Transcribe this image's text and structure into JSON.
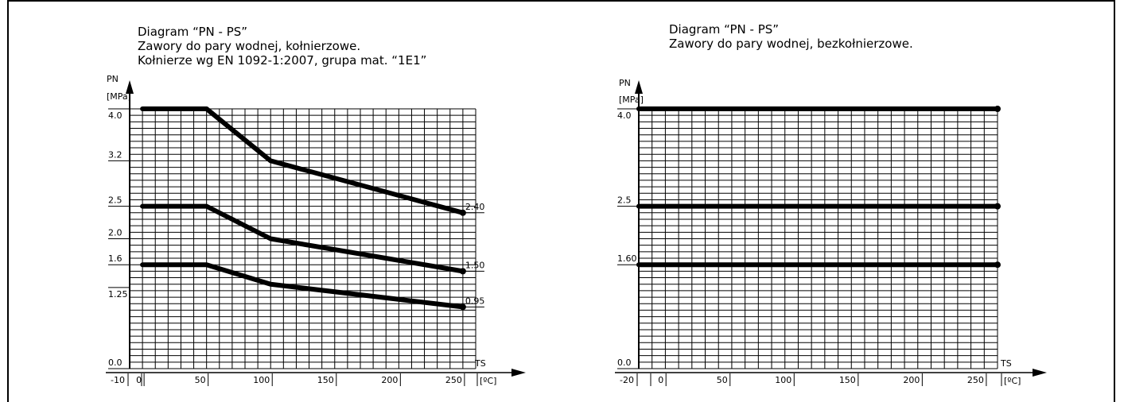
{
  "chart_data": [
    {
      "type": "line",
      "title_lines": [
        "Diagram “PN - PS”",
        "Zawory do pary wodnej, kołnierzowe.",
        "Kołnierze wg EN 1092-1:2007, grupa mat. “1E1”"
      ],
      "ylabel_lines": [
        "PN",
        "[MPa]"
      ],
      "xlabel": "TS",
      "xunit": "[ºC]",
      "xlim": [
        -10,
        260
      ],
      "ylim": [
        0,
        4
      ],
      "grid": true,
      "x_ticks": [
        {
          "v": -10,
          "label": "-10"
        },
        {
          "v": 0,
          "label": "0"
        },
        {
          "v": 50,
          "label": "50"
        },
        {
          "v": 100,
          "label": "100"
        },
        {
          "v": 150,
          "label": "150"
        },
        {
          "v": 200,
          "label": "200"
        },
        {
          "v": 250,
          "label": "250"
        }
      ],
      "y_ticks": [
        {
          "v": 0,
          "label": "0.0"
        },
        {
          "v": 1.25,
          "label": "1.25"
        },
        {
          "v": 1.6,
          "label": "1.6"
        },
        {
          "v": 2.0,
          "label": "2.0"
        },
        {
          "v": 2.5,
          "label": "2.5"
        },
        {
          "v": 3.2,
          "label": "3.2"
        },
        {
          "v": 4.0,
          "label": "4.0"
        }
      ],
      "series": [
        {
          "end_label": "2.40",
          "x": [
            0,
            50,
            100,
            250
          ],
          "y": [
            4.0,
            4.0,
            3.2,
            2.4
          ]
        },
        {
          "end_label": "1.50",
          "x": [
            0,
            50,
            100,
            250
          ],
          "y": [
            2.5,
            2.5,
            2.0,
            1.5
          ]
        },
        {
          "end_label": "0.95",
          "x": [
            0,
            50,
            100,
            250
          ],
          "y": [
            1.6,
            1.6,
            1.3,
            0.95
          ]
        }
      ]
    },
    {
      "type": "line",
      "title_lines": [
        "Diagram “PN - PS”",
        "Zawory do pary wodnej, bezkołnierzowe."
      ],
      "ylabel_lines": [
        "PN",
        "[MPa]"
      ],
      "xlabel": "TS",
      "xunit": "[ºC]",
      "xlim": [
        -20,
        260
      ],
      "ylim": [
        0,
        4
      ],
      "grid": true,
      "x_ticks": [
        {
          "v": -20,
          "label": "-20"
        },
        {
          "v": 0,
          "label": "0"
        },
        {
          "v": 50,
          "label": "50"
        },
        {
          "v": 100,
          "label": "100"
        },
        {
          "v": 150,
          "label": "150"
        },
        {
          "v": 200,
          "label": "200"
        },
        {
          "v": 250,
          "label": "250"
        }
      ],
      "y_ticks": [
        {
          "v": 0,
          "label": "0.0"
        },
        {
          "v": 1.6,
          "label": "1.60"
        },
        {
          "v": 2.5,
          "label": "2.5"
        },
        {
          "v": 4.0,
          "label": "4.0"
        }
      ],
      "series": [
        {
          "end_label": "",
          "x": [
            -20,
            260
          ],
          "y": [
            4.0,
            4.0
          ]
        },
        {
          "end_label": "",
          "x": [
            -20,
            260
          ],
          "y": [
            2.5,
            2.5
          ]
        },
        {
          "end_label": "",
          "x": [
            -20,
            260
          ],
          "y": [
            1.6,
            1.6
          ]
        }
      ]
    }
  ]
}
